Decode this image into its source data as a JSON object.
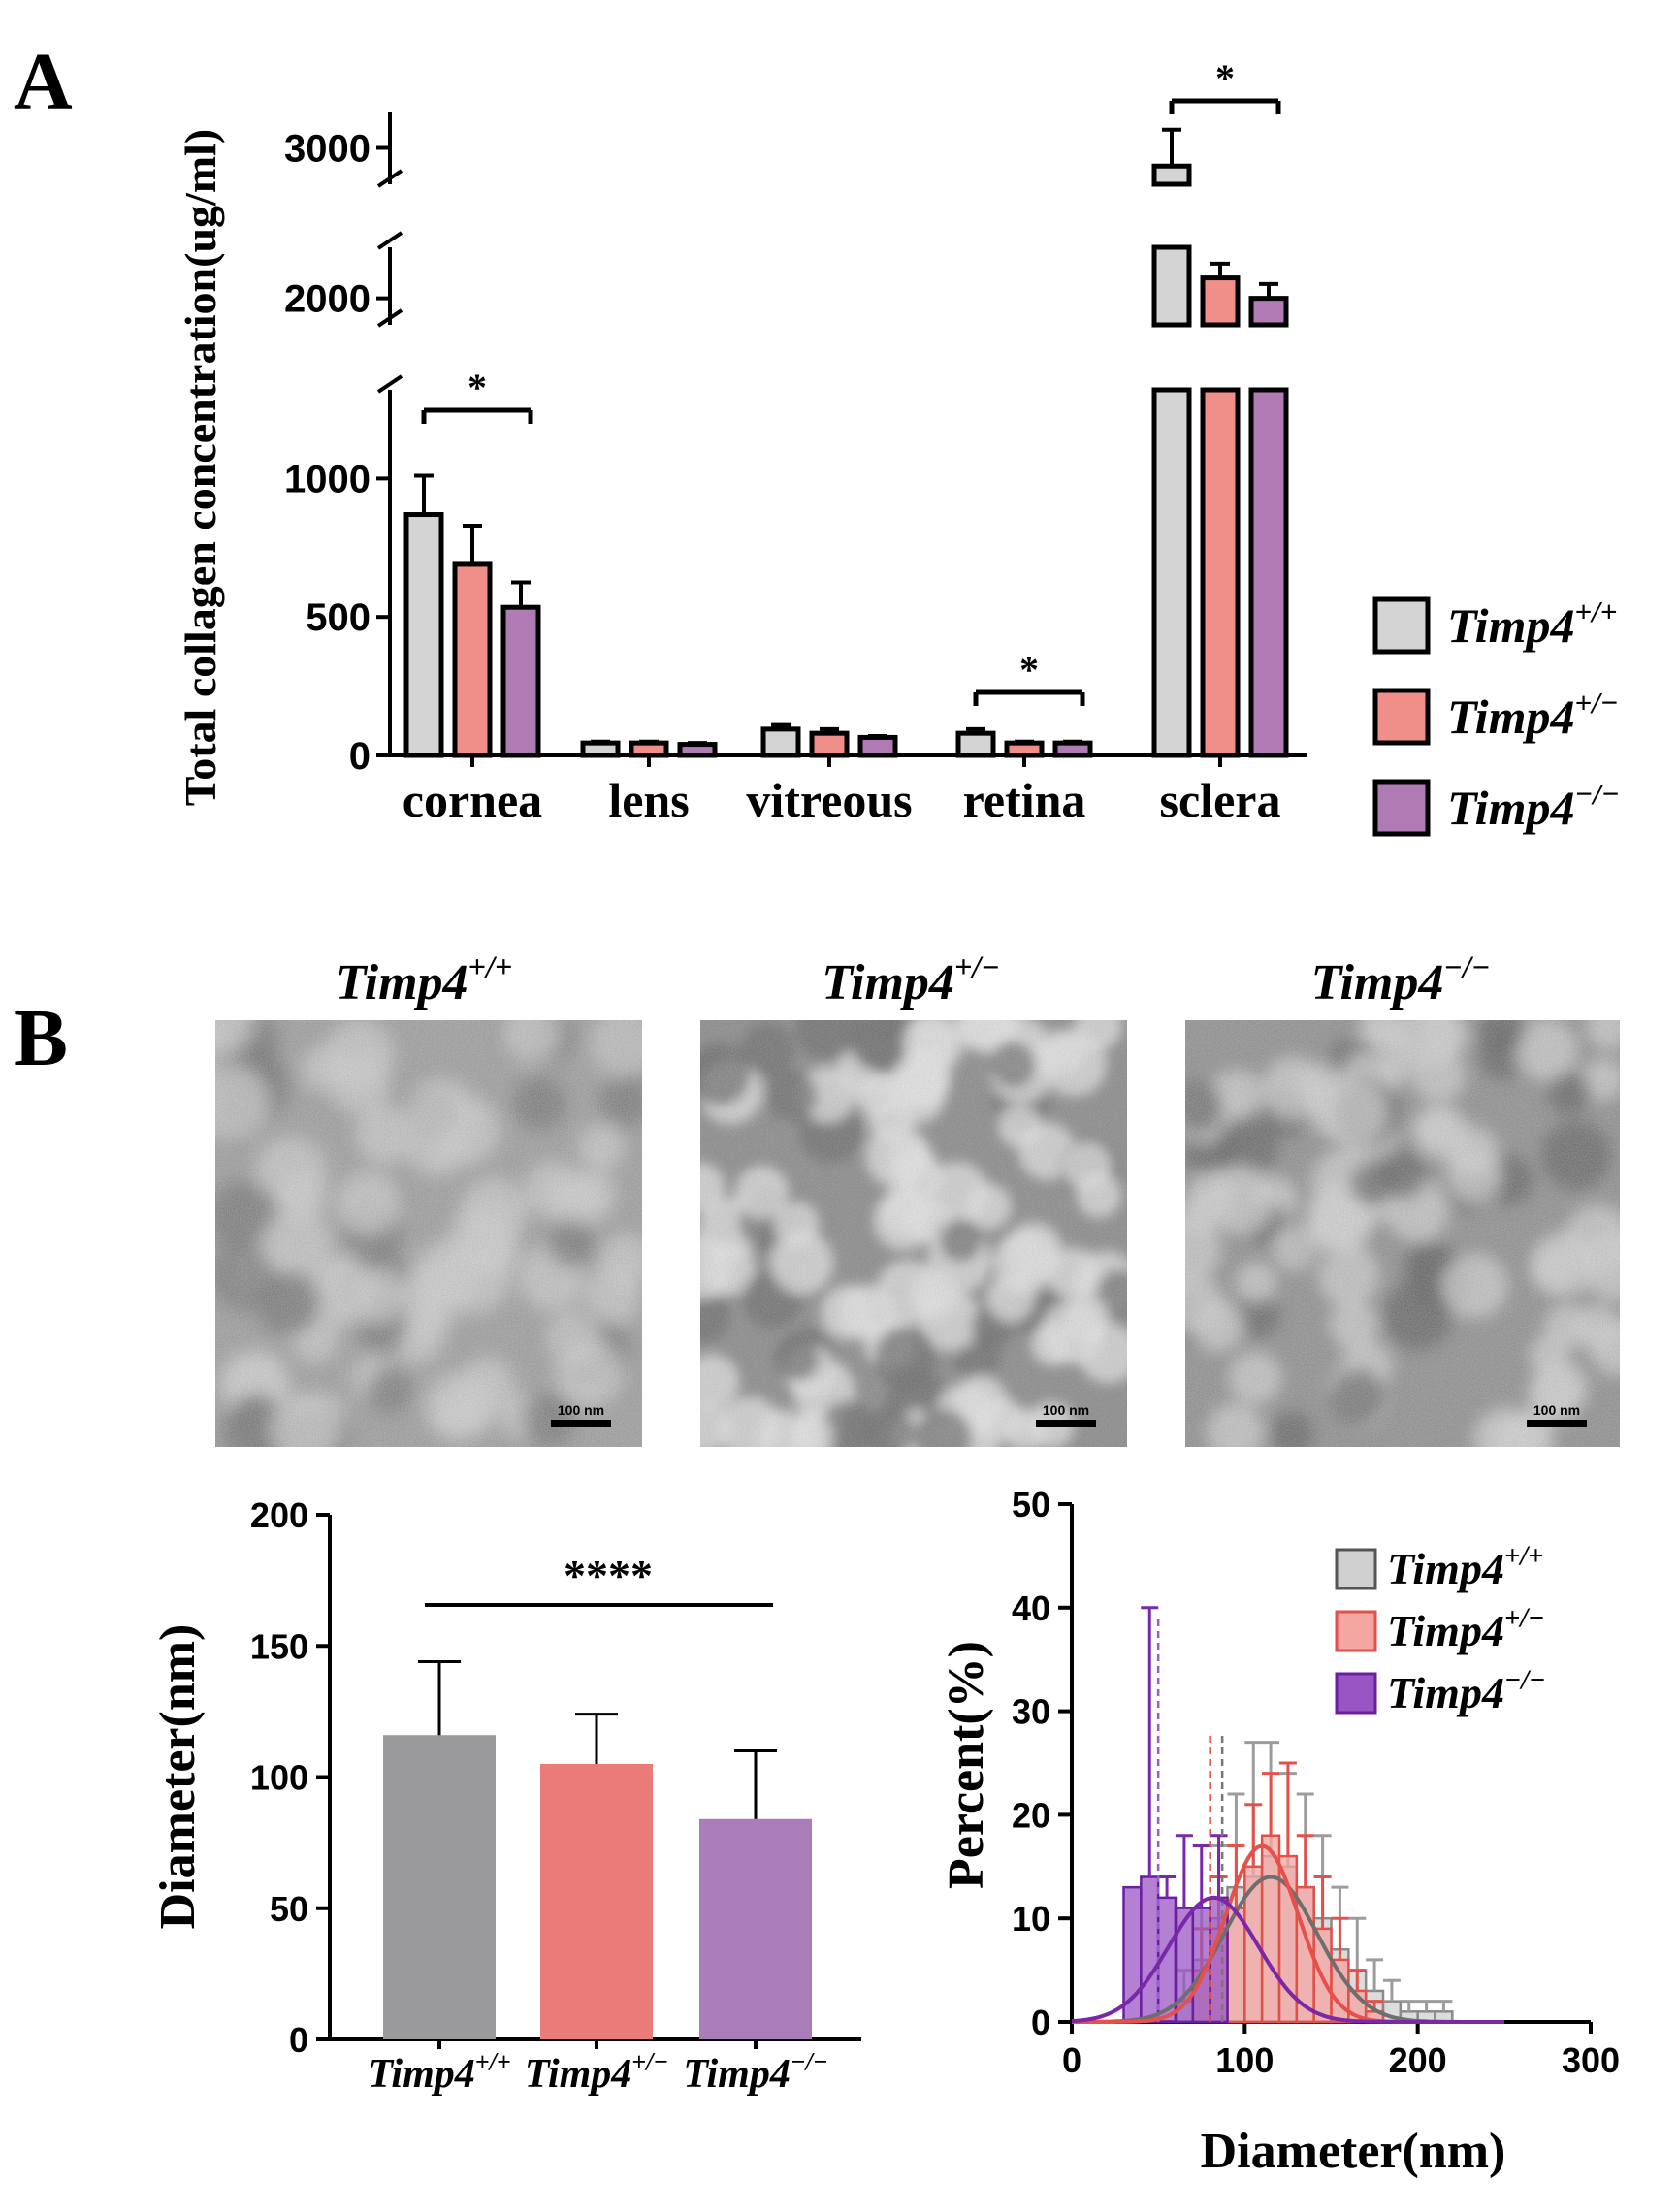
{
  "panel_labels": {
    "a": "A",
    "b": "B"
  },
  "colors": {
    "wt": "#d4d4d4",
    "het": "#f08f8a",
    "ko": "#b07bb4",
    "wt_b": "#9a9a9c",
    "het_b": "#eb7b78",
    "ko_b": "#a87db8",
    "purple_line": "#7a28a8"
  },
  "legend_a": [
    {
      "base": "Timp4",
      "sup": "+/+"
    },
    {
      "base": "Timp4",
      "sup": "+/−"
    },
    {
      "base": "Timp4",
      "sup": "−/−"
    }
  ],
  "tem": {
    "titles": [
      {
        "base": "Timp4",
        "sup": "+/+"
      },
      {
        "base": "Timp4",
        "sup": "+/−"
      },
      {
        "base": "Timp4",
        "sup": "−/−"
      }
    ],
    "scale_label": "100 nm"
  },
  "chart_data": [
    {
      "id": "panel-a",
      "type": "bar",
      "title": "",
      "ylabel": "Total collagen concentration(ug/ml)",
      "xlabel": "",
      "categories": [
        "cornea",
        "lens",
        "vitreous",
        "retina",
        "sclera"
      ],
      "series": [
        {
          "name": "Timp4+/+",
          "values": [
            870,
            45,
            95,
            80,
            2900
          ],
          "errors": [
            140,
            5,
            15,
            15,
            200
          ]
        },
        {
          "name": "Timp4+/−",
          "values": [
            690,
            45,
            80,
            45,
            2100
          ],
          "errors": [
            140,
            5,
            15,
            5,
            70
          ]
        },
        {
          "name": "Timp4−/−",
          "values": [
            535,
            40,
            65,
            45,
            2000
          ],
          "errors": [
            90,
            5,
            5,
            5,
            70
          ]
        }
      ],
      "y_segments": [
        [
          0,
          1320
        ],
        [
          1870,
          2250
        ],
        [
          2800,
          3200
        ]
      ],
      "yticks": [
        0,
        500,
        1000,
        2000,
        3000
      ],
      "ytick_labels": [
        "0",
        "500",
        "1000",
        "2000",
        "3000"
      ],
      "significance": [
        {
          "category": "cornea",
          "label": "*"
        },
        {
          "category": "retina",
          "label": "*"
        },
        {
          "category": "sclera",
          "label": "*"
        }
      ]
    },
    {
      "id": "panel-b-diameter",
      "type": "bar",
      "ylabel": "Diameter(nm)",
      "categories": [
        {
          "base": "Timp4",
          "sup": "+/+"
        },
        {
          "base": "Timp4",
          "sup": "+/−"
        },
        {
          "base": "Timp4",
          "sup": "−/−"
        }
      ],
      "values": [
        116,
        105,
        84
      ],
      "errors": [
        28,
        19,
        26
      ],
      "ylim": [
        0,
        200
      ],
      "yticks": [
        0,
        50,
        100,
        150,
        200
      ],
      "ytick_labels": [
        "0",
        "50",
        "100",
        "150",
        "200"
      ],
      "significance": {
        "label": "****"
      }
    },
    {
      "id": "panel-b-histogram",
      "type": "bar",
      "xlabel": "Diameter(nm)",
      "ylabel": "Percent(%)",
      "xlim": [
        0,
        300
      ],
      "ylim": [
        0,
        50
      ],
      "xticks": [
        0,
        100,
        200,
        300
      ],
      "xtick_labels": [
        "0",
        "100",
        "200",
        "300"
      ],
      "yticks": [
        0,
        10,
        20,
        30,
        40,
        50
      ],
      "ytick_labels": [
        "0",
        "10",
        "20",
        "30",
        "40",
        "50"
      ],
      "bin_width": 10,
      "series": [
        {
          "name": "Timp4+/+",
          "bins": [
            60,
            70,
            80,
            90,
            100,
            110,
            120,
            130,
            140,
            150,
            160,
            170,
            180,
            190,
            200,
            210
          ],
          "values": [
            2,
            6,
            10,
            13,
            14,
            16,
            15,
            13,
            10,
            7,
            5,
            3,
            2,
            1,
            1,
            1
          ],
          "errors": [
            3,
            5,
            7,
            9,
            13,
            11,
            9,
            9,
            8,
            6,
            5,
            3,
            2,
            1,
            1,
            1
          ],
          "mean": 87,
          "fit_mean": 115,
          "fit_sd": 27,
          "fit_peak": 14
        },
        {
          "name": "Timp4+/−",
          "bins": [
            70,
            80,
            90,
            100,
            110,
            120,
            130,
            140,
            150,
            160,
            170
          ],
          "values": [
            5,
            9,
            11,
            15,
            18,
            16,
            13,
            9,
            6,
            3,
            1
          ],
          "errors": [
            4,
            5,
            6,
            6,
            6,
            9,
            5,
            5,
            4,
            2,
            1
          ],
          "mean": 80,
          "fit_mean": 110,
          "fit_sd": 21,
          "fit_peak": 17
        },
        {
          "name": "Timp4−/−",
          "bins": [
            30,
            40,
            50,
            60,
            70,
            80
          ],
          "values": [
            13,
            14,
            12,
            11,
            11,
            12
          ],
          "errors": [
            0,
            26,
            2,
            7,
            6,
            6
          ],
          "mean": 50,
          "fit_mean": 82,
          "fit_sd": 26,
          "fit_peak": 12
        }
      ],
      "legend": [
        {
          "base": "Timp4",
          "sup": "+/+"
        },
        {
          "base": "Timp4",
          "sup": "+/−"
        },
        {
          "base": "Timp4",
          "sup": "−/−"
        }
      ]
    }
  ]
}
